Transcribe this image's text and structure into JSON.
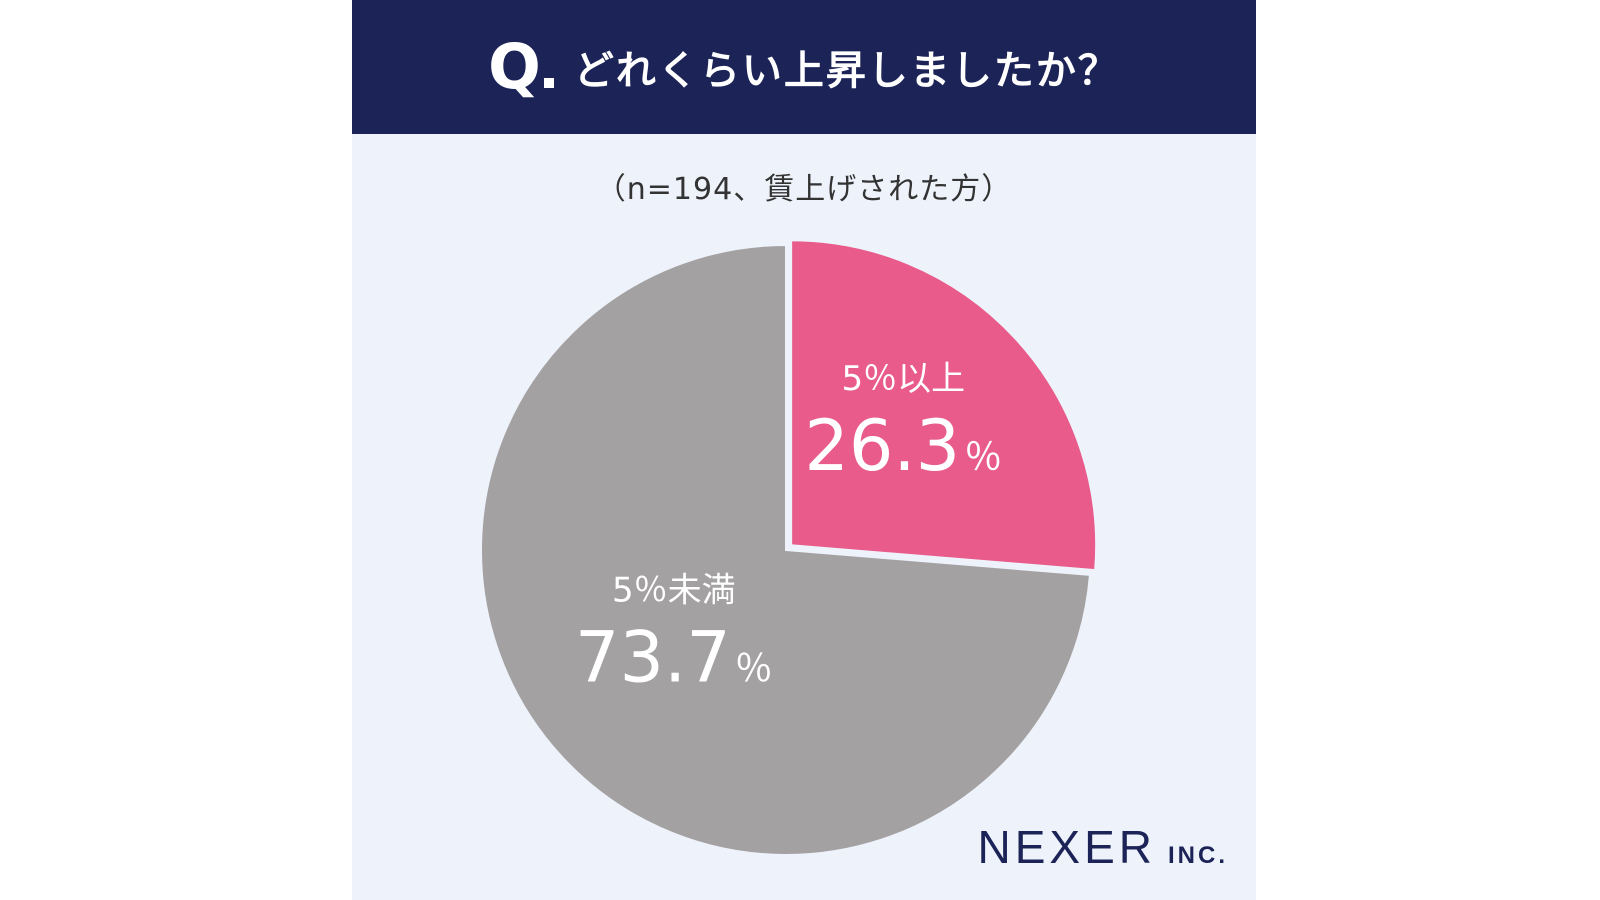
{
  "header": {
    "q_label": "Q",
    "title": "どれくらい上昇しましたか？"
  },
  "subtitle": "（n=194、賃上げされた方）",
  "brand": {
    "name": "NEXER",
    "suffix": "INC."
  },
  "chart_data": {
    "type": "pie",
    "title": "どれくらい上昇しましたか？",
    "subtitle": "（n=194、賃上げされた方）",
    "start": "top",
    "direction": "clockwise",
    "slices": [
      {
        "label": "5％以上",
        "value": 26.3,
        "display": "26.3",
        "unit": "％",
        "color": "#e85b8a",
        "exploded": true
      },
      {
        "label": "5％未満",
        "value": 73.7,
        "display": "73.7",
        "unit": "％",
        "color": "#a3a1a2",
        "exploded": false
      }
    ]
  }
}
